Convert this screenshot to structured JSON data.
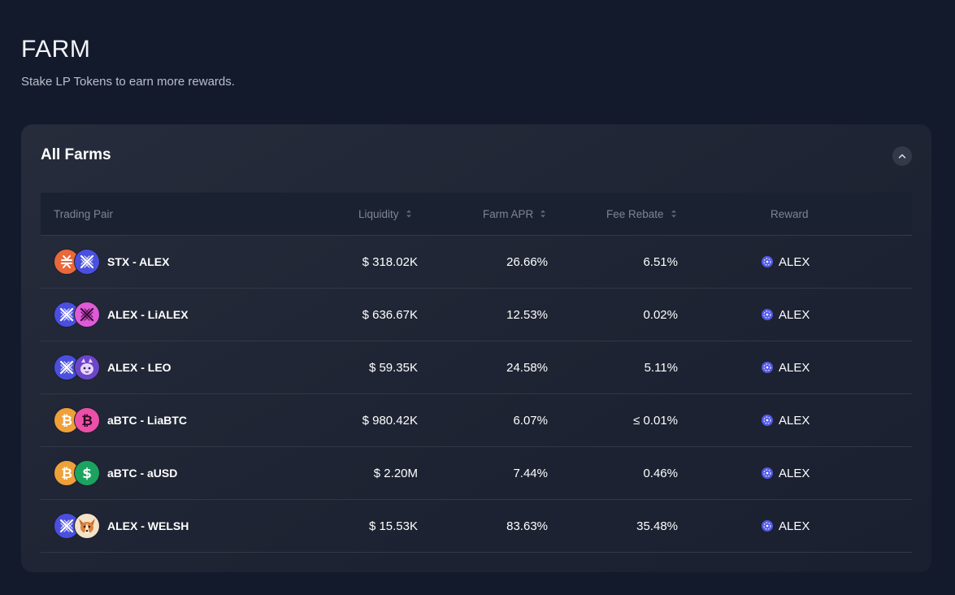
{
  "header": {
    "title": "FARM",
    "subtitle": "Stake LP Tokens to earn more rewards."
  },
  "card": {
    "title": "All Farms",
    "collapse_icon": "chevron-up-icon"
  },
  "table": {
    "columns": {
      "pair": "Trading Pair",
      "liquidity": "Liquidity",
      "apr": "Farm APR",
      "rebate": "Fee Rebate",
      "reward": "Reward"
    },
    "rows": [
      {
        "pair": "STX - ALEX",
        "token_a": "stx",
        "token_b": "alex",
        "liquidity": "$ 318.02K",
        "apr": "26.66%",
        "rebate": "6.51%",
        "reward": "ALEX"
      },
      {
        "pair": "ALEX - LiALEX",
        "token_a": "alex",
        "token_b": "lialex",
        "liquidity": "$ 636.67K",
        "apr": "12.53%",
        "rebate": "0.02%",
        "reward": "ALEX"
      },
      {
        "pair": "ALEX - LEO",
        "token_a": "alex",
        "token_b": "leo",
        "liquidity": "$ 59.35K",
        "apr": "24.58%",
        "rebate": "5.11%",
        "reward": "ALEX"
      },
      {
        "pair": "aBTC - LiaBTC",
        "token_a": "abtc",
        "token_b": "liabtc",
        "liquidity": "$ 980.42K",
        "apr": "6.07%",
        "rebate": "≤ 0.01%",
        "reward": "ALEX"
      },
      {
        "pair": "aBTC - aUSD",
        "token_a": "abtc",
        "token_b": "ausd",
        "liquidity": "$ 2.20M",
        "apr": "7.44%",
        "rebate": "0.46%",
        "reward": "ALEX"
      },
      {
        "pair": "ALEX - WELSH",
        "token_a": "alex",
        "token_b": "welsh",
        "liquidity": "$ 15.53K",
        "apr": "83.63%",
        "rebate": "35.48%",
        "reward": "ALEX"
      }
    ]
  },
  "colors": {
    "background": "#131a2b",
    "card": "#232a39",
    "stx": "#e8683a",
    "alex": "#4a4fe0",
    "lialex": "#e05ad8",
    "btc": "#f0a038",
    "liabtc": "#ec4fa8",
    "ausd": "#1ba35f"
  }
}
